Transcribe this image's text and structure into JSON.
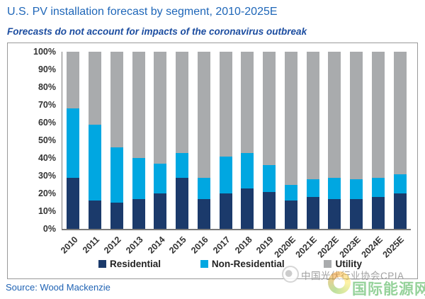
{
  "title": "U.S. PV installation forecast by segment, 2010-2025E",
  "subtitle": "Forecasts do not account for impacts of the coronavirus outbreak",
  "source": "Source: Wood Mackenzie",
  "watermark": {
    "cpia_text": "中国光伏行业协会CPIA",
    "energy_text": "国际能源网"
  },
  "colors": {
    "residential": "#1b3a6b",
    "non_residential": "#00a7e1",
    "utility": "#a9abad",
    "title_blue": "#1e66b8",
    "subtitle_blue": "#1c4da0",
    "source_blue": "#2063b4",
    "axis_gray": "#7a7a7a",
    "watermark_gray": "#9b9b9b",
    "watermark_green": "#3fae49"
  },
  "chart_data": {
    "type": "bar",
    "stacked": true,
    "unit": "percent",
    "title": "U.S. PV installation forecast by segment, 2010-2025E",
    "categories": [
      "2010",
      "2011",
      "2012",
      "2013",
      "2014",
      "2015",
      "2016",
      "2017",
      "2018",
      "2019",
      "2020E",
      "2021E",
      "2022E",
      "2023E",
      "2024E",
      "2025E"
    ],
    "series": [
      {
        "name": "Residential",
        "color_key": "residential",
        "values": [
          29,
          16,
          15,
          17,
          20,
          29,
          17,
          20,
          23,
          21,
          16,
          18,
          17,
          17,
          18,
          20
        ]
      },
      {
        "name": "Non-Residential",
        "color_key": "non_residential",
        "values": [
          39,
          43,
          31,
          23,
          17,
          14,
          12,
          21,
          20,
          15,
          9,
          10,
          12,
          11,
          11,
          11
        ]
      },
      {
        "name": "Utility",
        "color_key": "utility",
        "values": [
          32,
          41,
          54,
          60,
          63,
          57,
          71,
          59,
          57,
          64,
          75,
          72,
          71,
          72,
          71,
          69
        ]
      }
    ],
    "yticks": [
      "100%",
      "90%",
      "80%",
      "70%",
      "60%",
      "50%",
      "40%",
      "30%",
      "20%",
      "10%",
      "0%"
    ],
    "ylim": [
      0,
      100
    ],
    "legend_position": "bottom",
    "grid": false
  }
}
